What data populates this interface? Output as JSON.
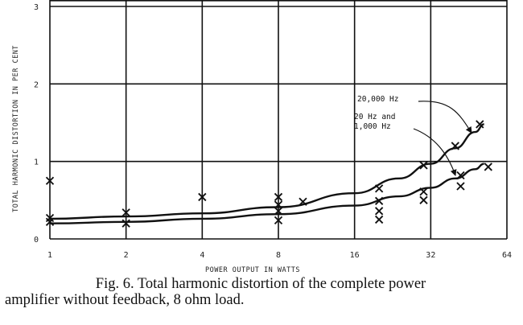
{
  "chart_data": {
    "type": "scatter",
    "x_scale": "log2",
    "xlabel": "POWER OUTPUT IN WATTS",
    "ylabel": "TOTAL HARMONIC DISTORTION IN PER CENT",
    "xlim": [
      1,
      64
    ],
    "ylim": [
      0,
      3
    ],
    "x_ticks": [
      "1",
      "2",
      "4",
      "8",
      "16",
      "32",
      "64"
    ],
    "y_ticks": [
      "0",
      "1",
      "2",
      "3"
    ],
    "grid": true,
    "series": [
      {
        "name": "20,000 Hz",
        "points": [
          [
            1,
            0.75
          ],
          [
            1,
            0.27
          ],
          [
            2,
            0.34
          ],
          [
            4,
            0.54
          ],
          [
            8,
            0.54
          ],
          [
            8,
            0.44
          ],
          [
            10,
            0.48
          ],
          [
            20,
            0.65
          ],
          [
            30,
            0.95
          ],
          [
            40,
            1.2
          ],
          [
            50,
            1.48
          ]
        ],
        "fit": [
          [
            1,
            0.26
          ],
          [
            2,
            0.29
          ],
          [
            4,
            0.33
          ],
          [
            8,
            0.41
          ],
          [
            16,
            0.59
          ],
          [
            24,
            0.78
          ],
          [
            32,
            0.97
          ],
          [
            40,
            1.17
          ],
          [
            48,
            1.38
          ],
          [
            52,
            1.48
          ]
        ]
      },
      {
        "name": "20 Hz and 1,000 Hz",
        "points": [
          [
            1,
            0.22
          ],
          [
            2,
            0.2
          ],
          [
            8,
            0.24
          ],
          [
            8,
            0.36
          ],
          [
            20,
            0.49
          ],
          [
            20,
            0.36
          ],
          [
            20,
            0.25
          ],
          [
            30,
            0.5
          ],
          [
            30,
            0.61
          ],
          [
            42,
            0.82
          ],
          [
            42,
            0.68
          ],
          [
            54,
            0.93
          ]
        ],
        "fit": [
          [
            1,
            0.2
          ],
          [
            2,
            0.22
          ],
          [
            4,
            0.26
          ],
          [
            8,
            0.32
          ],
          [
            16,
            0.43
          ],
          [
            24,
            0.55
          ],
          [
            32,
            0.66
          ],
          [
            40,
            0.78
          ],
          [
            48,
            0.9
          ],
          [
            52,
            0.97
          ]
        ]
      }
    ],
    "annotations": [
      {
        "lines": [
          "20,000 Hz"
        ]
      },
      {
        "lines": [
          "20 Hz and",
          "1,000 Hz"
        ]
      }
    ]
  },
  "caption": {
    "line1": "Fig. 6.  Total harmonic distortion of the complete power",
    "line2": "amplifier without feedback, 8 ohm load."
  }
}
